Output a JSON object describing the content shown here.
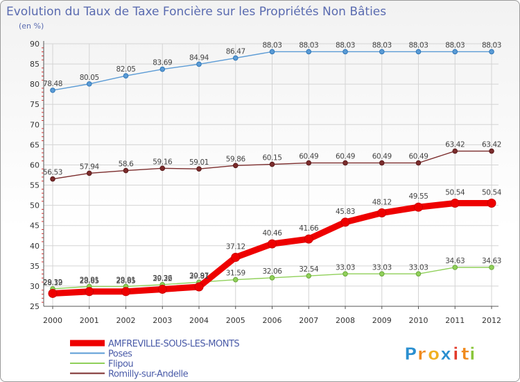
{
  "chart_data": {
    "type": "line",
    "title": "Evolution du Taux de Taxe Foncière sur les Propriétés Non Bâties",
    "ylabel": "(en %)",
    "xlabel": "",
    "ylim": [
      25,
      90
    ],
    "yticks": [
      25,
      30,
      35,
      40,
      45,
      50,
      55,
      60,
      65,
      70,
      75,
      80,
      85,
      90
    ],
    "grid": true,
    "categories": [
      "2000",
      "2001",
      "2002",
      "2003",
      "2004",
      "2005",
      "2006",
      "2007",
      "2008",
      "2009",
      "2010",
      "2011",
      "2012"
    ],
    "series": [
      {
        "name": "Poses",
        "color": "#5b9bd5",
        "values": [
          78.48,
          80.05,
          82.05,
          83.69,
          84.94,
          86.47,
          88.03,
          88.03,
          88.03,
          88.03,
          88.03,
          88.03,
          88.03
        ],
        "labels": [
          "78.48",
          "80.05",
          "82.05",
          "83.69",
          "84.94",
          "86.47",
          "88.03",
          "88.03",
          "88.03",
          "88.03",
          "88.03",
          "88.03",
          "88.03"
        ]
      },
      {
        "name": "Romilly-sur-Andelle",
        "color": "#7b2c2c",
        "values": [
          56.53,
          57.94,
          58.6,
          59.16,
          59.01,
          59.86,
          60.15,
          60.49,
          60.49,
          60.49,
          60.49,
          63.42,
          63.42
        ],
        "labels": [
          "56.53",
          "57.94",
          "58.6",
          "59.16",
          "59.01",
          "59.86",
          "60.15",
          "60.49",
          "60.49",
          "60.49",
          "60.49",
          "63.42",
          "63.42"
        ]
      },
      {
        "name": "Flipou",
        "color": "#90d05a",
        "values": [
          29.32,
          29.91,
          29.91,
          30.36,
          30.97,
          31.59,
          32.06,
          32.54,
          33.03,
          33.03,
          33.03,
          34.63,
          34.63
        ],
        "labels": [
          "29.32",
          "29.91",
          "29.91",
          "30.36",
          "30.97",
          "31.59",
          "32.06",
          "32.54",
          "33.03",
          "33.03",
          "33.03",
          "34.63",
          "34.63"
        ]
      },
      {
        "name": "AMFREVILLE-SOUS-LES-MONTS",
        "color": "#ee0000",
        "values": [
          28.19,
          28.65,
          28.65,
          29.22,
          29.81,
          37.12,
          40.46,
          41.66,
          45.83,
          48.12,
          49.55,
          50.54,
          50.54
        ],
        "labels": [
          "28.19",
          "28.65",
          "28.65",
          "29.22",
          "29.81",
          "37.12",
          "40.46",
          "41.66",
          "45.83",
          "48.12",
          "49.55",
          "50.54",
          "50.54"
        ]
      }
    ],
    "legend": [
      "AMFREVILLE-SOUS-LES-MONTS",
      "Poses",
      "Flipou",
      "Romilly-sur-Andelle"
    ]
  },
  "logo": {
    "text": "Prox i ti",
    "letters": [
      "P",
      "r",
      "o",
      "x",
      "i",
      "t",
      "i"
    ],
    "colors": [
      "#2a8fd0",
      "#f08a1c",
      "#f0b020",
      "#2a8fd0",
      "#e23a2a",
      "#f08a1c",
      "#8ac63a"
    ]
  }
}
